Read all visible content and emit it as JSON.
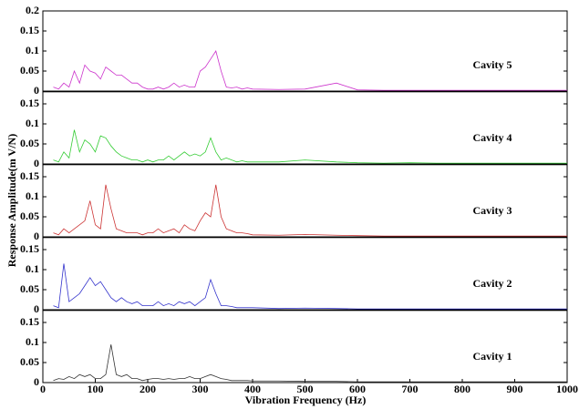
{
  "chart_data": [
    {
      "type": "line",
      "title": "Cavity 5",
      "color": "#cc33cc",
      "xlim": [
        0,
        1000
      ],
      "ylim": [
        0,
        0.2
      ],
      "yticks": [
        0,
        0.05,
        0.1,
        0.15,
        0.2
      ],
      "x": [
        20,
        30,
        40,
        50,
        60,
        70,
        80,
        90,
        100,
        110,
        120,
        130,
        140,
        150,
        160,
        170,
        180,
        190,
        200,
        210,
        220,
        230,
        240,
        250,
        260,
        270,
        280,
        290,
        300,
        310,
        320,
        330,
        340,
        350,
        360,
        370,
        380,
        390,
        400,
        450,
        500,
        560,
        600,
        650,
        700,
        750,
        800,
        850,
        900,
        950,
        1000
      ],
      "values": [
        0.01,
        0.005,
        0.02,
        0.01,
        0.05,
        0.02,
        0.065,
        0.05,
        0.045,
        0.03,
        0.06,
        0.05,
        0.04,
        0.04,
        0.03,
        0.02,
        0.02,
        0.01,
        0.005,
        0.005,
        0.01,
        0.005,
        0.01,
        0.02,
        0.01,
        0.015,
        0.01,
        0.01,
        0.05,
        0.06,
        0.08,
        0.1,
        0.05,
        0.01,
        0.008,
        0.01,
        0.005,
        0.008,
        0.005,
        0.004,
        0.005,
        0.02,
        0.003,
        0.002,
        0.002,
        0.002,
        0.002,
        0.002,
        0.002,
        0.002,
        0.002
      ]
    },
    {
      "type": "line",
      "title": "Cavity 4",
      "color": "#33cc33",
      "xlim": [
        0,
        1000
      ],
      "ylim": [
        0,
        0.18
      ],
      "yticks": [
        0,
        0.05,
        0.1,
        0.15
      ],
      "x": [
        20,
        30,
        40,
        50,
        60,
        70,
        80,
        90,
        100,
        110,
        120,
        130,
        140,
        150,
        160,
        170,
        180,
        190,
        200,
        210,
        220,
        230,
        240,
        250,
        260,
        270,
        280,
        290,
        300,
        310,
        320,
        330,
        340,
        350,
        360,
        370,
        380,
        390,
        400,
        450,
        500,
        560,
        600,
        650,
        700,
        750,
        800,
        850,
        900,
        950,
        1000
      ],
      "values": [
        0.01,
        0.005,
        0.03,
        0.015,
        0.085,
        0.03,
        0.06,
        0.05,
        0.03,
        0.07,
        0.065,
        0.045,
        0.03,
        0.02,
        0.015,
        0.01,
        0.01,
        0.005,
        0.01,
        0.005,
        0.01,
        0.01,
        0.02,
        0.01,
        0.02,
        0.03,
        0.02,
        0.025,
        0.02,
        0.03,
        0.065,
        0.03,
        0.01,
        0.015,
        0.01,
        0.005,
        0.008,
        0.005,
        0.005,
        0.005,
        0.01,
        0.005,
        0.003,
        0.002,
        0.003,
        0.002,
        0.002,
        0.002,
        0.002,
        0.002,
        0.002
      ]
    },
    {
      "type": "line",
      "title": "Cavity 3",
      "color": "#cc3333",
      "ylabel": "Response Amplitude(m V/N)",
      "xlim": [
        0,
        1000
      ],
      "ylim": [
        0,
        0.18
      ],
      "yticks": [
        0,
        0.05,
        0.1,
        0.15
      ],
      "x": [
        20,
        30,
        40,
        50,
        60,
        70,
        80,
        90,
        100,
        110,
        120,
        130,
        140,
        150,
        160,
        170,
        180,
        190,
        200,
        210,
        220,
        230,
        240,
        250,
        260,
        270,
        280,
        290,
        300,
        310,
        320,
        330,
        340,
        350,
        360,
        370,
        380,
        390,
        400,
        450,
        500,
        560,
        600,
        650,
        700,
        750,
        800,
        850,
        900,
        950,
        1000
      ],
      "values": [
        0.01,
        0.005,
        0.02,
        0.01,
        0.02,
        0.03,
        0.04,
        0.09,
        0.03,
        0.02,
        0.13,
        0.07,
        0.02,
        0.015,
        0.01,
        0.01,
        0.01,
        0.005,
        0.01,
        0.01,
        0.02,
        0.01,
        0.015,
        0.02,
        0.01,
        0.03,
        0.02,
        0.015,
        0.04,
        0.06,
        0.05,
        0.13,
        0.05,
        0.02,
        0.015,
        0.01,
        0.01,
        0.008,
        0.005,
        0.004,
        0.006,
        0.004,
        0.003,
        0.002,
        0.002,
        0.002,
        0.002,
        0.002,
        0.002,
        0.002,
        0.002
      ]
    },
    {
      "type": "line",
      "title": "Cavity 2",
      "color": "#3333cc",
      "xlim": [
        0,
        1000
      ],
      "ylim": [
        0,
        0.18
      ],
      "yticks": [
        0,
        0.05,
        0.1,
        0.15
      ],
      "x": [
        20,
        30,
        40,
        50,
        60,
        70,
        80,
        90,
        100,
        110,
        120,
        130,
        140,
        150,
        160,
        170,
        180,
        190,
        200,
        210,
        220,
        230,
        240,
        250,
        260,
        270,
        280,
        290,
        300,
        310,
        320,
        330,
        340,
        350,
        360,
        370,
        380,
        390,
        400,
        450,
        500,
        560,
        600,
        650,
        700,
        750,
        800,
        850,
        900,
        950,
        1000
      ],
      "values": [
        0.01,
        0.005,
        0.115,
        0.02,
        0.03,
        0.04,
        0.06,
        0.08,
        0.06,
        0.07,
        0.05,
        0.03,
        0.02,
        0.03,
        0.02,
        0.015,
        0.02,
        0.01,
        0.01,
        0.01,
        0.02,
        0.01,
        0.015,
        0.01,
        0.02,
        0.015,
        0.02,
        0.01,
        0.02,
        0.03,
        0.075,
        0.04,
        0.01,
        0.01,
        0.008,
        0.005,
        0.005,
        0.005,
        0.005,
        0.003,
        0.004,
        0.003,
        0.002,
        0.002,
        0.002,
        0.002,
        0.002,
        0.002,
        0.002,
        0.002,
        0.002
      ]
    },
    {
      "type": "line",
      "title": "Cavity 1",
      "color": "#333333",
      "xlabel": "Vibration Frequency (Hz)",
      "xlim": [
        0,
        1000
      ],
      "xticks": [
        0,
        100,
        200,
        300,
        400,
        500,
        600,
        700,
        800,
        900,
        1000
      ],
      "ylim": [
        0,
        0.18
      ],
      "yticks": [
        0,
        0.05,
        0.1,
        0.15
      ],
      "x": [
        20,
        30,
        40,
        50,
        60,
        70,
        80,
        90,
        100,
        110,
        120,
        130,
        140,
        150,
        160,
        170,
        180,
        190,
        200,
        210,
        220,
        230,
        240,
        250,
        260,
        270,
        280,
        290,
        300,
        310,
        320,
        330,
        340,
        350,
        360,
        370,
        380,
        390,
        400,
        450,
        500,
        560,
        600,
        650,
        700,
        750,
        800,
        850,
        900,
        950,
        1000
      ],
      "values": [
        0.005,
        0.01,
        0.008,
        0.015,
        0.01,
        0.02,
        0.015,
        0.02,
        0.01,
        0.01,
        0.02,
        0.095,
        0.02,
        0.015,
        0.02,
        0.01,
        0.01,
        0.005,
        0.008,
        0.01,
        0.01,
        0.008,
        0.01,
        0.008,
        0.01,
        0.01,
        0.015,
        0.01,
        0.01,
        0.015,
        0.02,
        0.015,
        0.01,
        0.008,
        0.005,
        0.005,
        0.005,
        0.005,
        0.004,
        0.004,
        0.003,
        0.003,
        0.002,
        0.002,
        0.002,
        0.002,
        0.002,
        0.002,
        0.002,
        0.002,
        0.002
      ]
    }
  ]
}
